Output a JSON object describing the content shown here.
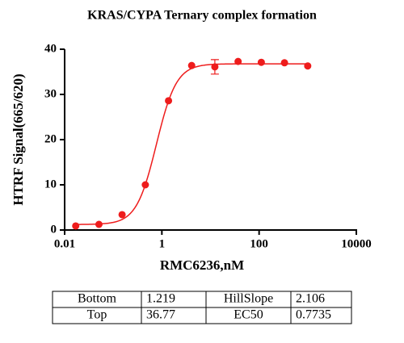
{
  "chart_data": {
    "type": "scatter",
    "title": "KRAS/CYPA Ternary complex formation",
    "x_label": "RMC6236,nM",
    "y_label": "HTRF Signal(665/620)",
    "x": [
      0.0169,
      0.0508,
      0.152,
      0.457,
      1.37,
      4.1,
      12.3,
      37,
      111,
      333,
      1000
    ],
    "values": [
      0.9,
      1.25,
      3.4,
      10,
      28.6,
      36.4,
      36.1,
      37.3,
      37.1,
      37,
      36.3
    ],
    "errors": [
      null,
      null,
      null,
      null,
      null,
      null,
      1.6,
      null,
      null,
      null,
      null
    ],
    "color": "#ee1c1c",
    "x_log": true,
    "xlim": [
      0.01,
      10000
    ],
    "xticks": [
      0.01,
      1,
      100,
      10000
    ],
    "ylim": [
      0,
      40
    ],
    "yticks": [
      0,
      10,
      20,
      30,
      40
    ]
  },
  "table": {
    "rows": [
      [
        "Bottom",
        1.219,
        "HillSlope",
        2.106
      ],
      [
        "Top",
        36.77,
        "EC50",
        0.7735
      ]
    ]
  }
}
